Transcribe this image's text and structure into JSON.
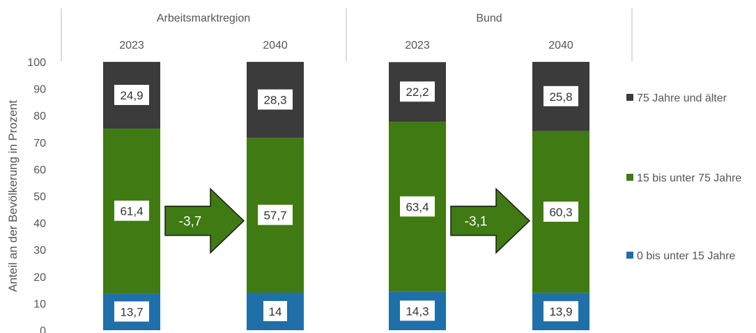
{
  "chart_data": {
    "type": "bar",
    "stacked": true,
    "title": "",
    "xlabel": "",
    "ylabel": "Anteil an der Bevölkerung in Prozent",
    "ylim": [
      0,
      100
    ],
    "yticks": [
      0,
      10,
      20,
      30,
      40,
      50,
      60,
      70,
      80,
      90,
      100
    ],
    "grid": false,
    "legend_position": "right",
    "groups": [
      {
        "label": "Arbeitsmarktregion",
        "categories": [
          "2023",
          "2040"
        ]
      },
      {
        "label": "Bund",
        "categories": [
          "2023",
          "2040"
        ]
      }
    ],
    "categories": [
      "2023",
      "2040",
      "2023",
      "2040"
    ],
    "series": [
      {
        "name": "0 bis unter 15 Jahre",
        "color": "#1f6fa8",
        "values": [
          13.7,
          14,
          14.3,
          13.9
        ],
        "labels": [
          "13,7",
          "14",
          "14,3",
          "13,9"
        ]
      },
      {
        "name": "15 bis unter 75 Jahre",
        "color": "#3f7a12",
        "values": [
          61.4,
          57.7,
          63.4,
          60.3
        ],
        "labels": [
          "61,4",
          "57,7",
          "63,4",
          "60,3"
        ]
      },
      {
        "name": "75 Jahre und älter",
        "color": "#3b3b3b",
        "values": [
          24.9,
          28.3,
          22.2,
          25.8
        ],
        "labels": [
          "24,9",
          "28,3",
          "22,2",
          "25,8"
        ]
      }
    ],
    "legend_order": [
      "75 Jahre und älter",
      "15 bis unter 75 Jahre",
      "0 bis unter 15 Jahre"
    ],
    "annotations": [
      {
        "text": "-3,7",
        "from_category": 0,
        "to_category": 1,
        "y": 40,
        "shape": "arrow",
        "color": "#3f7a12"
      },
      {
        "text": "-3,1",
        "from_category": 2,
        "to_category": 3,
        "y": 40,
        "shape": "arrow",
        "color": "#3f7a12"
      }
    ]
  }
}
